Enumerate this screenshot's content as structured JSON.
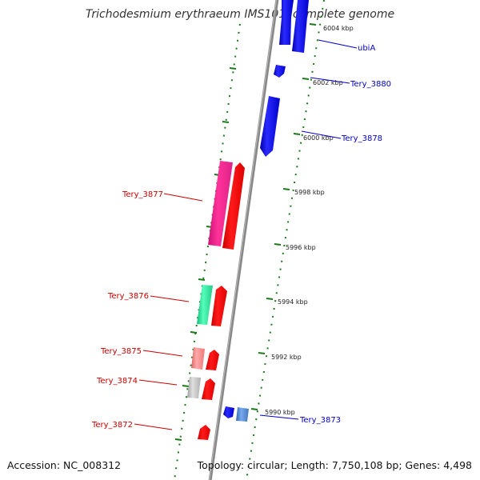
{
  "title": "Trichodesmium erythraeum IMS101, complete genome",
  "footer": {
    "accession": "Accession: NC_008312",
    "summary": "Topology: circular; Length: 7,750,108 bp; Genes: 4,498"
  },
  "colors": {
    "forward_label": "#cc0000",
    "reverse_label": "#0000cc",
    "backbone": "#888888",
    "tick": "#1a7a1a"
  },
  "ticks": [
    {
      "label": "6004 kbp"
    },
    {
      "label": "6002 kbp"
    },
    {
      "label": "6000 kbp"
    },
    {
      "label": "5998 kbp"
    },
    {
      "label": "5996 kbp"
    },
    {
      "label": "5994 kbp"
    },
    {
      "label": "5992 kbp"
    },
    {
      "label": "5990 kbp"
    }
  ],
  "gene_labels": [
    {
      "text": "ubiA",
      "strand": "reverse"
    },
    {
      "text": "Tery_3880",
      "strand": "reverse"
    },
    {
      "text": "Tery_3878",
      "strand": "reverse"
    },
    {
      "text": "Tery_3877",
      "strand": "forward"
    },
    {
      "text": "Tery_3876",
      "strand": "forward"
    },
    {
      "text": "Tery_3875",
      "strand": "forward"
    },
    {
      "text": "Tery_3874",
      "strand": "forward"
    },
    {
      "text": "Tery_3872",
      "strand": "forward"
    },
    {
      "text": "Tery_3873",
      "strand": "reverse"
    }
  ]
}
